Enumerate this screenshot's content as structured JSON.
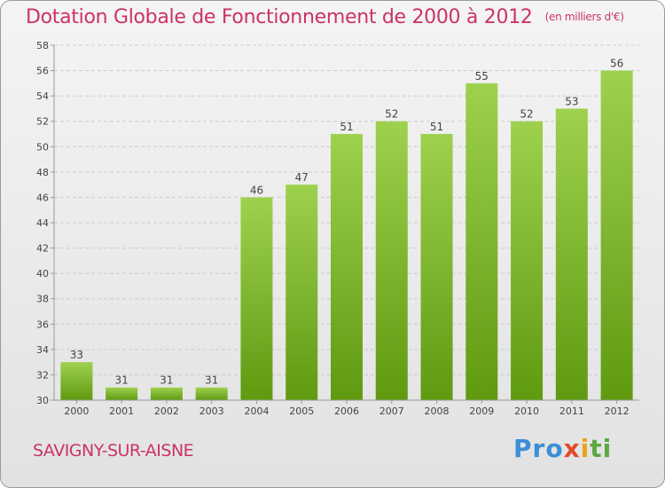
{
  "chart": {
    "title": "Dotation Globale de Fonctionnement de 2000 à 2012",
    "unit": "(en milliers d'€)"
  },
  "commune": "SAVIGNY-SUR-AISNE",
  "logo": [
    "Pro",
    "x",
    "i",
    "ti"
  ],
  "colors": {
    "bar_top": "#9ed14e",
    "bar_bottom": "#5f9a10",
    "title": "#cc3366",
    "grid": "#cccccc"
  },
  "chart_data": {
    "type": "bar",
    "title": "Dotation Globale de Fonctionnement de 2000 à 2012",
    "subtitle": "(en milliers d'€)",
    "categories": [
      "2000",
      "2001",
      "2002",
      "2003",
      "2004",
      "2005",
      "2006",
      "2007",
      "2008",
      "2009",
      "2010",
      "2011",
      "2012"
    ],
    "values": [
      33,
      31,
      31,
      31,
      46,
      47,
      51,
      52,
      51,
      55,
      52,
      53,
      56
    ],
    "ylim": [
      30,
      58
    ],
    "yticks": [
      30,
      32,
      34,
      36,
      38,
      40,
      42,
      44,
      46,
      48,
      50,
      52,
      54,
      56,
      58
    ],
    "grid": true,
    "data_labels": true
  }
}
